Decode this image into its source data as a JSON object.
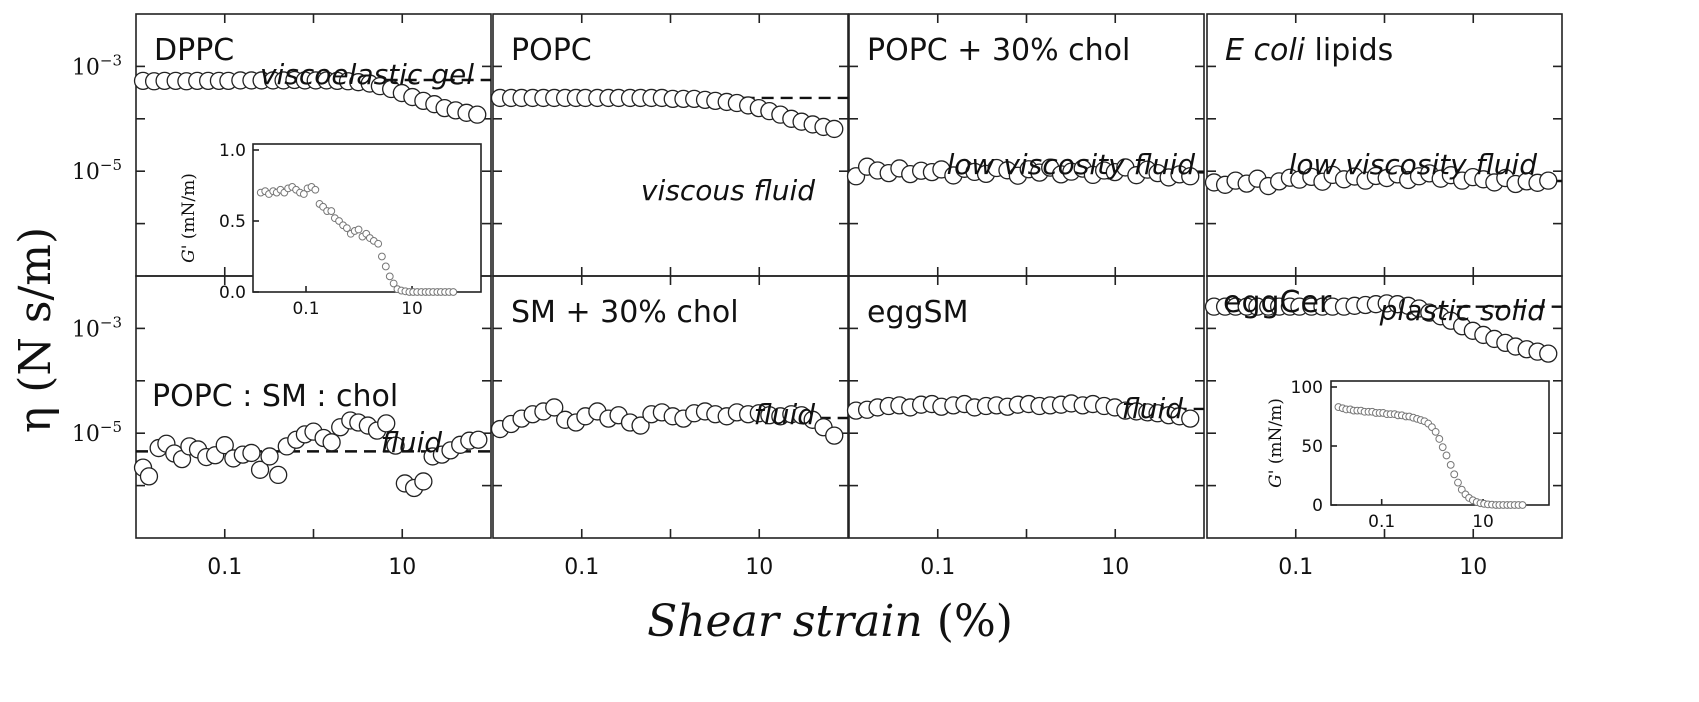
{
  "figure": {
    "y_axis_title": "η (N s/m)",
    "x_axis_title": {
      "italic": "Shear strain",
      "unit": "(%)"
    },
    "y_tick_labels": [
      "10-3",
      "10-5"
    ],
    "x_tick_labels": [
      "0.1",
      "10"
    ]
  },
  "chart_data": [
    {
      "type": "scatter",
      "name": "DPPC",
      "panel": [
        0,
        0
      ],
      "annotation": "viscoelastic gel",
      "xscale": "log",
      "yscale": "log",
      "xlim": [
        0.01,
        100
      ],
      "ylim": [
        1e-07,
        0.01
      ],
      "plateau": 0.00055,
      "x": [
        0.012,
        0.016,
        0.021,
        0.028,
        0.037,
        0.049,
        0.065,
        0.086,
        0.11,
        0.15,
        0.2,
        0.26,
        0.35,
        0.46,
        0.61,
        0.8,
        1.06,
        1.4,
        1.85,
        2.45,
        3.2,
        4.3,
        5.6,
        7.5,
        9.9,
        13,
        17.3,
        23,
        30,
        40,
        53,
        70
      ],
      "y": [
        0.00053,
        0.00052,
        0.00053,
        0.00053,
        0.00052,
        0.00053,
        0.00053,
        0.00053,
        0.00053,
        0.00054,
        0.00054,
        0.00054,
        0.00054,
        0.00054,
        0.00055,
        0.00054,
        0.00054,
        0.00054,
        0.00053,
        0.00052,
        0.0005,
        0.00047,
        0.00042,
        0.00037,
        0.00031,
        0.00026,
        0.00022,
        0.00019,
        0.00016,
        0.000145,
        0.00013,
        0.00012
      ]
    },
    {
      "type": "scatter",
      "name": "POPC",
      "panel": [
        0,
        1
      ],
      "annotation": "viscous fluid",
      "xscale": "log",
      "yscale": "log",
      "xlim": [
        0.01,
        100
      ],
      "ylim": [
        1e-07,
        0.01
      ],
      "plateau": 0.00025,
      "x": [
        0.012,
        0.016,
        0.021,
        0.028,
        0.037,
        0.049,
        0.065,
        0.086,
        0.11,
        0.15,
        0.2,
        0.26,
        0.35,
        0.46,
        0.61,
        0.8,
        1.06,
        1.4,
        1.85,
        2.45,
        3.2,
        4.3,
        5.6,
        7.5,
        9.9,
        13,
        17.3,
        23,
        30,
        40,
        53,
        70
      ],
      "y": [
        0.00025,
        0.00025,
        0.00025,
        0.00025,
        0.00025,
        0.00025,
        0.00025,
        0.00025,
        0.00025,
        0.00025,
        0.00025,
        0.00025,
        0.00025,
        0.00025,
        0.00025,
        0.00025,
        0.00024,
        0.00024,
        0.00024,
        0.00023,
        0.00022,
        0.00021,
        0.0002,
        0.00018,
        0.00016,
        0.00014,
        0.00012,
        0.0001,
        8.8e-05,
        7.8e-05,
        7e-05,
        6.4e-05
      ]
    },
    {
      "type": "scatter",
      "name": "POPC + 30% chol",
      "panel": [
        0,
        2
      ],
      "annotation": "low viscosity fluid",
      "xscale": "log",
      "yscale": "log",
      "xlim": [
        0.01,
        100
      ],
      "ylim": [
        1e-07,
        0.01
      ],
      "plateau": 9.5e-06,
      "x": [
        0.012,
        0.016,
        0.021,
        0.028,
        0.037,
        0.049,
        0.065,
        0.086,
        0.11,
        0.15,
        0.2,
        0.26,
        0.35,
        0.46,
        0.61,
        0.8,
        1.06,
        1.4,
        1.85,
        2.45,
        3.2,
        4.3,
        5.6,
        7.5,
        9.9,
        13,
        17.3,
        23,
        30,
        40,
        53,
        70
      ],
      "y": [
        8e-06,
        1.22e-05,
        1.03e-05,
        9.2e-06,
        1.13e-05,
        8.8e-06,
        1.02e-05,
        9.6e-06,
        1.08e-05,
        8.3e-06,
        1.11e-05,
        9.7e-06,
        8.9e-06,
        1.15e-05,
        1.04e-05,
        8.2e-06,
        1.09e-05,
        9.4e-06,
        1.17e-05,
        8.7e-06,
        9.8e-06,
        1.12e-05,
        8.5e-06,
        1.03e-05,
        9.6e-06,
        1.18e-05,
        8.4e-06,
        1.07e-05,
        9.2e-06,
        7.6e-06,
        8.7e-06,
        8e-06
      ]
    },
    {
      "type": "scatter",
      "name": "E coli lipids",
      "panel": [
        0,
        3
      ],
      "annotation": "low viscosity fluid",
      "xscale": "log",
      "yscale": "log",
      "xlim": [
        0.01,
        100
      ],
      "ylim": [
        1e-07,
        0.01
      ],
      "plateau": 6.5e-06,
      "x": [
        0.012,
        0.016,
        0.021,
        0.028,
        0.037,
        0.049,
        0.065,
        0.086,
        0.11,
        0.15,
        0.2,
        0.26,
        0.35,
        0.46,
        0.61,
        0.8,
        1.06,
        1.4,
        1.85,
        2.45,
        3.2,
        4.3,
        5.6,
        7.5,
        9.9,
        13,
        17.3,
        23,
        30,
        40,
        53,
        70
      ],
      "y": [
        6.1e-06,
        5.5e-06,
        6.6e-06,
        5.8e-06,
        7.2e-06,
        5.2e-06,
        6.4e-06,
        7.5e-06,
        6.9e-06,
        7.8e-06,
        6.3e-06,
        8.5e-06,
        7e-06,
        7.9e-06,
        6.6e-06,
        8.1e-06,
        7.4e-06,
        8.7e-06,
        6.8e-06,
        8e-06,
        9.1e-06,
        7.2e-06,
        8.4e-06,
        6.6e-06,
        7.7e-06,
        7e-06,
        6.1e-06,
        7.4e-06,
        5.7e-06,
        6.4e-06,
        6e-06,
        6.6e-06
      ]
    },
    {
      "type": "scatter",
      "name": "POPC : SM : chol",
      "panel": [
        1,
        0
      ],
      "annotation": "fluid",
      "xscale": "log",
      "yscale": "log",
      "xlim": [
        0.01,
        100
      ],
      "ylim": [
        1e-07,
        0.01
      ],
      "plateau": 4.5e-06,
      "x": [
        0.012,
        0.014,
        0.018,
        0.022,
        0.027,
        0.033,
        0.04,
        0.05,
        0.062,
        0.078,
        0.1,
        0.125,
        0.16,
        0.2,
        0.25,
        0.32,
        0.4,
        0.5,
        0.64,
        0.8,
        1.0,
        1.3,
        1.6,
        2.0,
        2.6,
        3.2,
        4.1,
        5.2,
        6.6,
        8.4,
        10.7,
        13.6,
        17.3,
        22,
        28,
        35,
        45,
        57,
        72
      ],
      "y": [
        2.2e-06,
        1.5e-06,
        5.2e-06,
        6.3e-06,
        4.1e-06,
        3.2e-06,
        5.6e-06,
        4.9e-06,
        3.5e-06,
        3.8e-06,
        5.9e-06,
        3.3e-06,
        3.9e-06,
        4.2e-06,
        2e-06,
        3.6e-06,
        1.6e-06,
        5.6e-06,
        7.5e-06,
        9.5e-06,
        1.07e-05,
        8.1e-06,
        6.7e-06,
        1.3e-05,
        1.75e-05,
        1.6e-05,
        1.4e-05,
        1.12e-05,
        1.54e-05,
        5.8e-06,
        1.1e-06,
        9e-07,
        1.2e-06,
        3.6e-06,
        3.9e-06,
        4.7e-06,
        6e-06,
        7.2e-06,
        7.5e-06
      ]
    },
    {
      "type": "scatter",
      "name": "SM + 30% chol",
      "panel": [
        1,
        1
      ],
      "annotation": "fluid",
      "xscale": "log",
      "yscale": "log",
      "xlim": [
        0.01,
        100
      ],
      "ylim": [
        1e-07,
        0.01
      ],
      "plateau": 1.95e-05,
      "x": [
        0.012,
        0.016,
        0.021,
        0.028,
        0.037,
        0.049,
        0.065,
        0.086,
        0.11,
        0.15,
        0.2,
        0.26,
        0.35,
        0.46,
        0.61,
        0.8,
        1.06,
        1.4,
        1.85,
        2.45,
        3.2,
        4.3,
        5.6,
        7.5,
        9.9,
        13,
        17.3,
        23,
        30,
        40,
        53,
        70
      ],
      "y": [
        1.2e-05,
        1.5e-05,
        1.9e-05,
        2.3e-05,
        2.6e-05,
        3.1e-05,
        1.8e-05,
        1.6e-05,
        2.1e-05,
        2.6e-05,
        1.9e-05,
        2.2e-05,
        1.6e-05,
        1.4e-05,
        2.3e-05,
        2.5e-05,
        2.1e-05,
        1.9e-05,
        2.4e-05,
        2.6e-05,
        2.3e-05,
        2.1e-05,
        2.5e-05,
        2.3e-05,
        2.4e-05,
        2.2e-05,
        2.1e-05,
        2.3e-05,
        2.2e-05,
        1.8e-05,
        1.3e-05,
        9e-06
      ]
    },
    {
      "type": "scatter",
      "name": "eggSM",
      "panel": [
        1,
        2
      ],
      "annotation": "fluid",
      "xscale": "log",
      "yscale": "log",
      "xlim": [
        0.01,
        100
      ],
      "ylim": [
        1e-07,
        0.01
      ],
      "plateau": 2.9e-05,
      "x": [
        0.012,
        0.016,
        0.021,
        0.028,
        0.037,
        0.049,
        0.065,
        0.086,
        0.11,
        0.15,
        0.2,
        0.26,
        0.35,
        0.46,
        0.61,
        0.8,
        1.06,
        1.4,
        1.85,
        2.45,
        3.2,
        4.3,
        5.6,
        7.5,
        9.9,
        13,
        17.3,
        23,
        30,
        40,
        53,
        70
      ],
      "y": [
        2.7e-05,
        2.8e-05,
        3.1e-05,
        3.3e-05,
        3.4e-05,
        3.1e-05,
        3.5e-05,
        3.6e-05,
        3.2e-05,
        3.4e-05,
        3.6e-05,
        3.1e-05,
        3.3e-05,
        3.4e-05,
        3.2e-05,
        3.5e-05,
        3.6e-05,
        3.3e-05,
        3.4e-05,
        3.5e-05,
        3.7e-05,
        3.4e-05,
        3.6e-05,
        3.3e-05,
        3.1e-05,
        2.7e-05,
        2.6e-05,
        2.5e-05,
        2.4e-05,
        2.2e-05,
        2.1e-05,
        1.9e-05
      ]
    },
    {
      "type": "scatter",
      "name": "eggCer",
      "panel": [
        1,
        3
      ],
      "annotation": "plastic solid",
      "xscale": "log",
      "yscale": "log",
      "xlim": [
        0.01,
        100
      ],
      "ylim": [
        1e-07,
        0.01
      ],
      "plateau": 0.0026,
      "x": [
        0.012,
        0.016,
        0.021,
        0.028,
        0.037,
        0.049,
        0.065,
        0.086,
        0.11,
        0.15,
        0.2,
        0.26,
        0.35,
        0.46,
        0.61,
        0.8,
        1.06,
        1.4,
        1.85,
        2.45,
        3.2,
        4.3,
        5.6,
        7.5,
        9.9,
        13,
        17.3,
        23,
        30,
        40,
        53,
        70
      ],
      "y": [
        0.0026,
        0.0026,
        0.0026,
        0.0026,
        0.0026,
        0.0026,
        0.0026,
        0.0026,
        0.0026,
        0.0026,
        0.0026,
        0.0026,
        0.0026,
        0.0027,
        0.0028,
        0.0029,
        0.003,
        0.0029,
        0.0027,
        0.0024,
        0.002,
        0.0017,
        0.0014,
        0.0011,
        0.0009,
        0.00075,
        0.00063,
        0.00053,
        0.00045,
        0.0004,
        0.00036,
        0.00033
      ]
    }
  ],
  "insets": [
    {
      "type": "scatter",
      "host_panel": "DPPC",
      "ylabel": "G' (mN/m)",
      "xscale": "log",
      "xlim": [
        0.01,
        200
      ],
      "ylim": [
        0,
        1.0
      ],
      "y_tick_labels": [
        "0.0",
        "0.5",
        "1.0"
      ],
      "x_tick_labels": [
        "0.1",
        "10"
      ],
      "x": [
        0.014,
        0.017,
        0.02,
        0.024,
        0.028,
        0.033,
        0.039,
        0.046,
        0.055,
        0.065,
        0.077,
        0.091,
        0.107,
        0.127,
        0.15,
        0.18,
        0.21,
        0.25,
        0.3,
        0.35,
        0.42,
        0.5,
        0.59,
        0.7,
        0.83,
        0.98,
        1.16,
        1.37,
        1.6,
        1.9,
        2.3,
        2.7,
        3.2,
        3.8,
        4.5,
        5.3,
        6.3,
        7.5,
        8.9,
        10.5,
        12.5,
        15,
        18,
        21,
        25,
        30,
        35,
        42,
        50,
        60
      ],
      "y": [
        0.7,
        0.71,
        0.69,
        0.71,
        0.7,
        0.72,
        0.7,
        0.73,
        0.74,
        0.72,
        0.7,
        0.69,
        0.73,
        0.74,
        0.72,
        0.62,
        0.6,
        0.57,
        0.57,
        0.52,
        0.5,
        0.47,
        0.45,
        0.41,
        0.43,
        0.44,
        0.39,
        0.41,
        0.38,
        0.36,
        0.34,
        0.25,
        0.18,
        0.11,
        0.06,
        0.02,
        0.01,
        0.005,
        0,
        0,
        0,
        0,
        0,
        0,
        0,
        0,
        0,
        0,
        0,
        0
      ]
    },
    {
      "type": "scatter",
      "host_panel": "eggCer",
      "ylabel": "G' (mN/m)",
      "xscale": "log",
      "xlim": [
        0.01,
        200
      ],
      "ylim": [
        0,
        100
      ],
      "y_tick_labels": [
        "0",
        "50",
        "100"
      ],
      "x_tick_labels": [
        "0.1",
        "10"
      ],
      "x": [
        0.014,
        0.017,
        0.02,
        0.024,
        0.028,
        0.033,
        0.039,
        0.046,
        0.055,
        0.065,
        0.077,
        0.091,
        0.107,
        0.127,
        0.15,
        0.18,
        0.21,
        0.25,
        0.3,
        0.35,
        0.42,
        0.5,
        0.59,
        0.7,
        0.83,
        0.98,
        1.16,
        1.37,
        1.6,
        1.9,
        2.3,
        2.7,
        3.2,
        3.8,
        4.5,
        5.3,
        6.3,
        7.5,
        8.9,
        10.5,
        12.5,
        15,
        18,
        21,
        25,
        30,
        35,
        42,
        50,
        60
      ],
      "y": [
        83,
        82,
        81,
        81,
        80,
        80,
        80,
        79,
        79,
        79,
        78,
        78,
        78,
        77,
        77,
        77,
        76,
        76,
        75,
        75,
        74,
        73,
        72,
        71,
        69,
        66,
        62,
        56,
        49,
        42,
        34,
        26,
        19,
        13,
        9,
        6,
        4,
        2.5,
        1.5,
        1,
        0.5,
        0.3,
        0,
        0,
        0,
        0,
        0,
        0,
        0,
        0
      ]
    }
  ]
}
